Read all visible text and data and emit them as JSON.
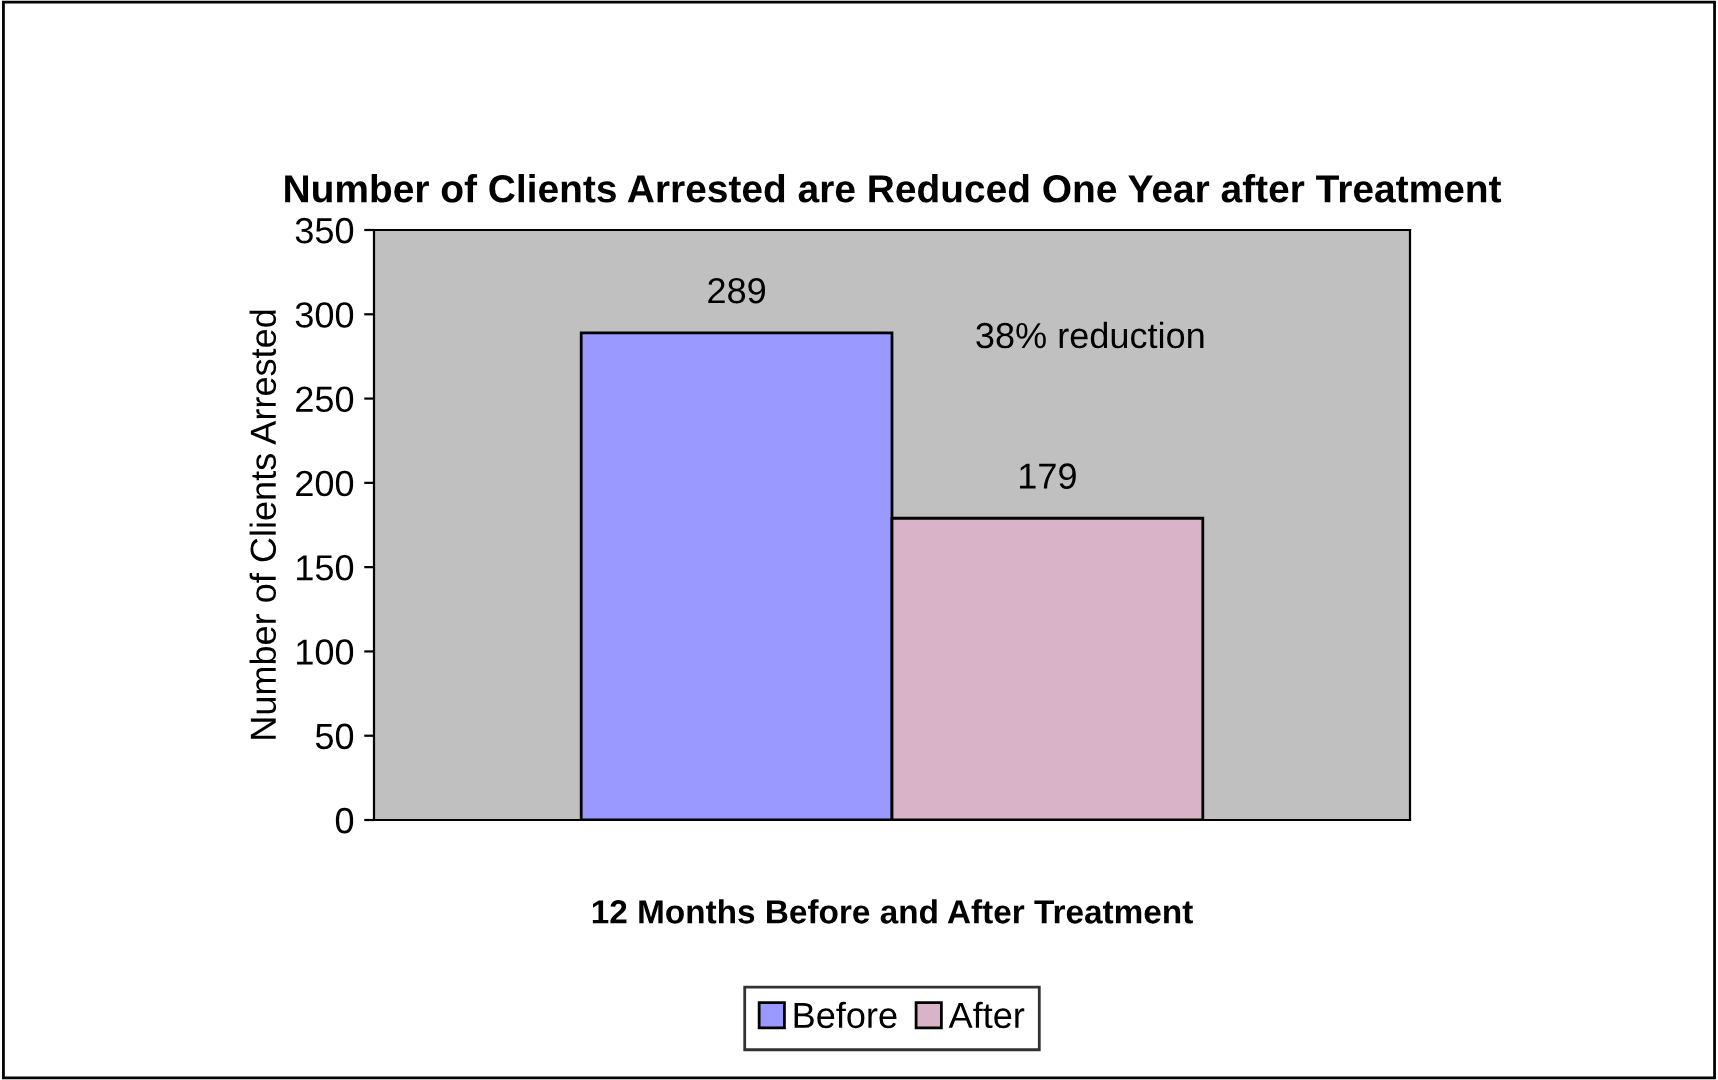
{
  "chart_data": {
    "type": "bar",
    "title": "Number of Clients Arrested are Reduced One Year after Treatment",
    "xlabel": "12 Months Before and After Treatment",
    "ylabel": "Number of Clients Arrested",
    "categories": [
      null
    ],
    "series": [
      {
        "name": "Before",
        "color": "#9999ff",
        "values": [
          289
        ]
      },
      {
        "name": "After",
        "color": "#d9b4c9",
        "values": [
          179
        ]
      }
    ],
    "ylim": [
      0,
      350
    ],
    "yticks": [
      0,
      50,
      100,
      150,
      200,
      250,
      300,
      350
    ],
    "grid": false,
    "legend": "bottom",
    "data_labels": true,
    "annotations": [
      "38% reduction"
    ]
  }
}
